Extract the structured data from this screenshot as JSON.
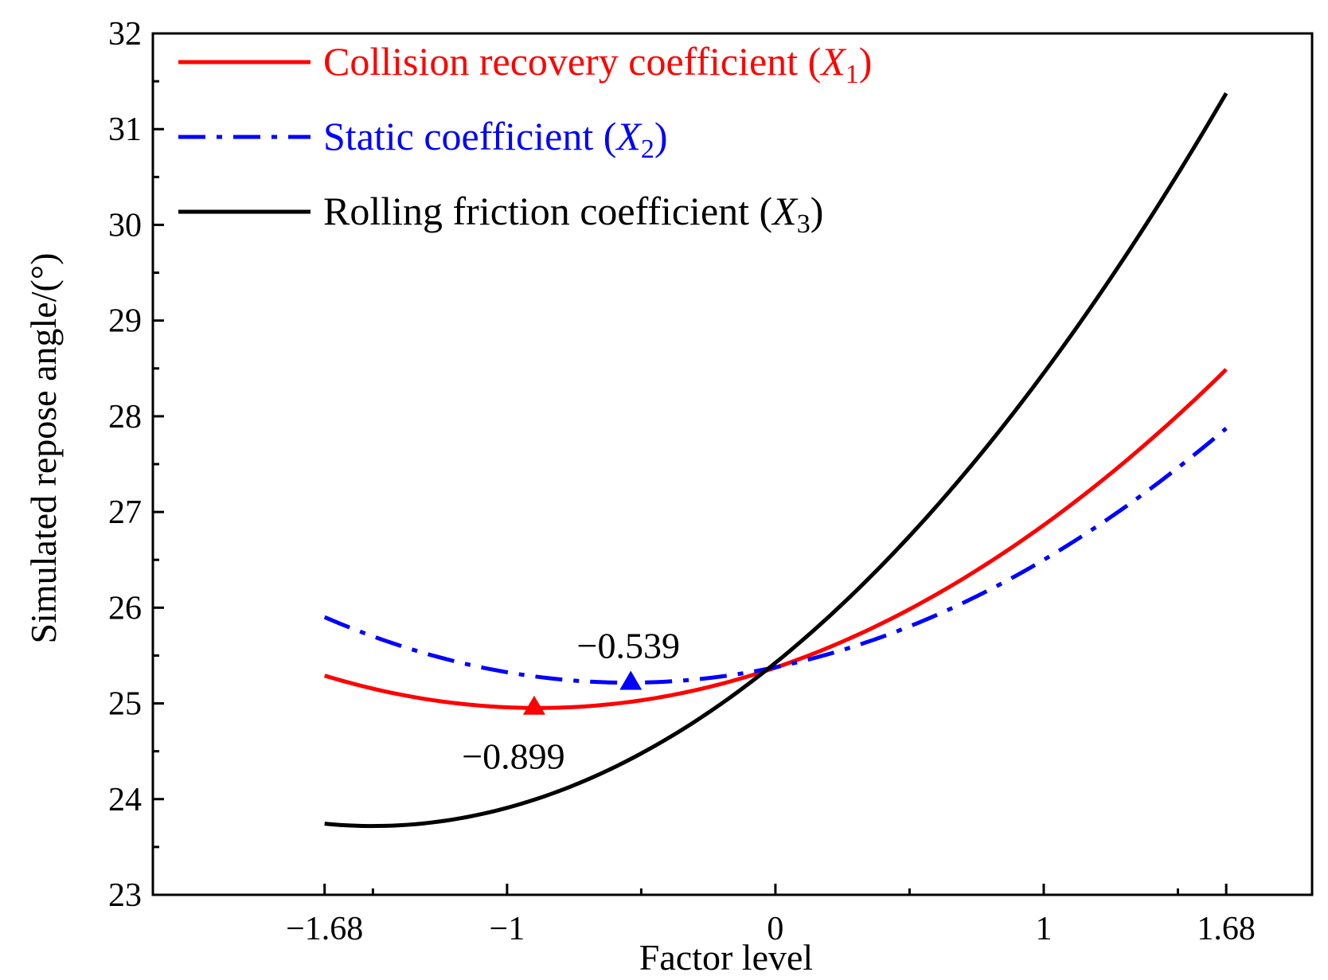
{
  "chart_data": {
    "type": "line",
    "xlabel": "Factor level",
    "ylabel": "Simulated repose angle/(°)",
    "xlim": [
      -2.32,
      2.0
    ],
    "ylim": [
      23,
      32
    ],
    "x_ticks": [
      {
        "value": -1.68,
        "label": "−1.68"
      },
      {
        "value": -1,
        "label": "−1"
      },
      {
        "value": 0,
        "label": "0"
      },
      {
        "value": 1,
        "label": "1"
      },
      {
        "value": 1.68,
        "label": "1.68"
      }
    ],
    "x_minor_ticks": [
      -1.5,
      -0.5,
      0.5,
      1.5
    ],
    "y_ticks": [
      {
        "value": 23,
        "label": "23"
      },
      {
        "value": 24,
        "label": "24"
      },
      {
        "value": 25,
        "label": "25"
      },
      {
        "value": 26,
        "label": "26"
      },
      {
        "value": 27,
        "label": "27"
      },
      {
        "value": 28,
        "label": "28"
      },
      {
        "value": 29,
        "label": "29"
      },
      {
        "value": 30,
        "label": "30"
      },
      {
        "value": 31,
        "label": "31"
      },
      {
        "value": 32,
        "label": "32"
      }
    ],
    "y_minor_step": 0.5,
    "legend_position": "top-left",
    "series": [
      {
        "name": "Collision recovery coefficient",
        "symbol": "X",
        "subscript": "1",
        "color": "#ff0000",
        "style": "solid",
        "x": [
          -1.68,
          -1.2,
          -0.899,
          -0.5,
          0,
          0.5,
          1.0,
          1.68
        ],
        "y": [
          25.28,
          25.02,
          24.95,
          25.03,
          25.38,
          25.99,
          26.84,
          28.5
        ]
      },
      {
        "name": "Static coefficient",
        "symbol": "X",
        "subscript": "2",
        "color": "#0000ff",
        "style": "dashdot",
        "x": [
          -1.68,
          -1.0,
          -0.539,
          0,
          0.5,
          1.0,
          1.68
        ],
        "y": [
          25.9,
          25.33,
          25.21,
          25.38,
          25.82,
          26.48,
          27.88
        ]
      },
      {
        "name": "Rolling friction coefficient",
        "symbol": "X",
        "subscript": "3",
        "color": "#000000",
        "style": "solid",
        "x": [
          -1.68,
          -1.44,
          -1.0,
          -0.5,
          0,
          0.5,
          1.0,
          1.68
        ],
        "y": [
          23.75,
          23.71,
          23.91,
          24.49,
          25.4,
          26.78,
          28.43,
          31.38
        ]
      }
    ],
    "markers": [
      {
        "series": 0,
        "x": -0.899,
        "y": 24.95,
        "shape": "triangle",
        "color": "#ff0000",
        "label": "−0.899",
        "label_anchor": "below-left"
      },
      {
        "series": 1,
        "x": -0.539,
        "y": 25.21,
        "shape": "triangle",
        "color": "#0000ff",
        "label": "−0.539",
        "label_anchor": "above-left"
      }
    ]
  }
}
